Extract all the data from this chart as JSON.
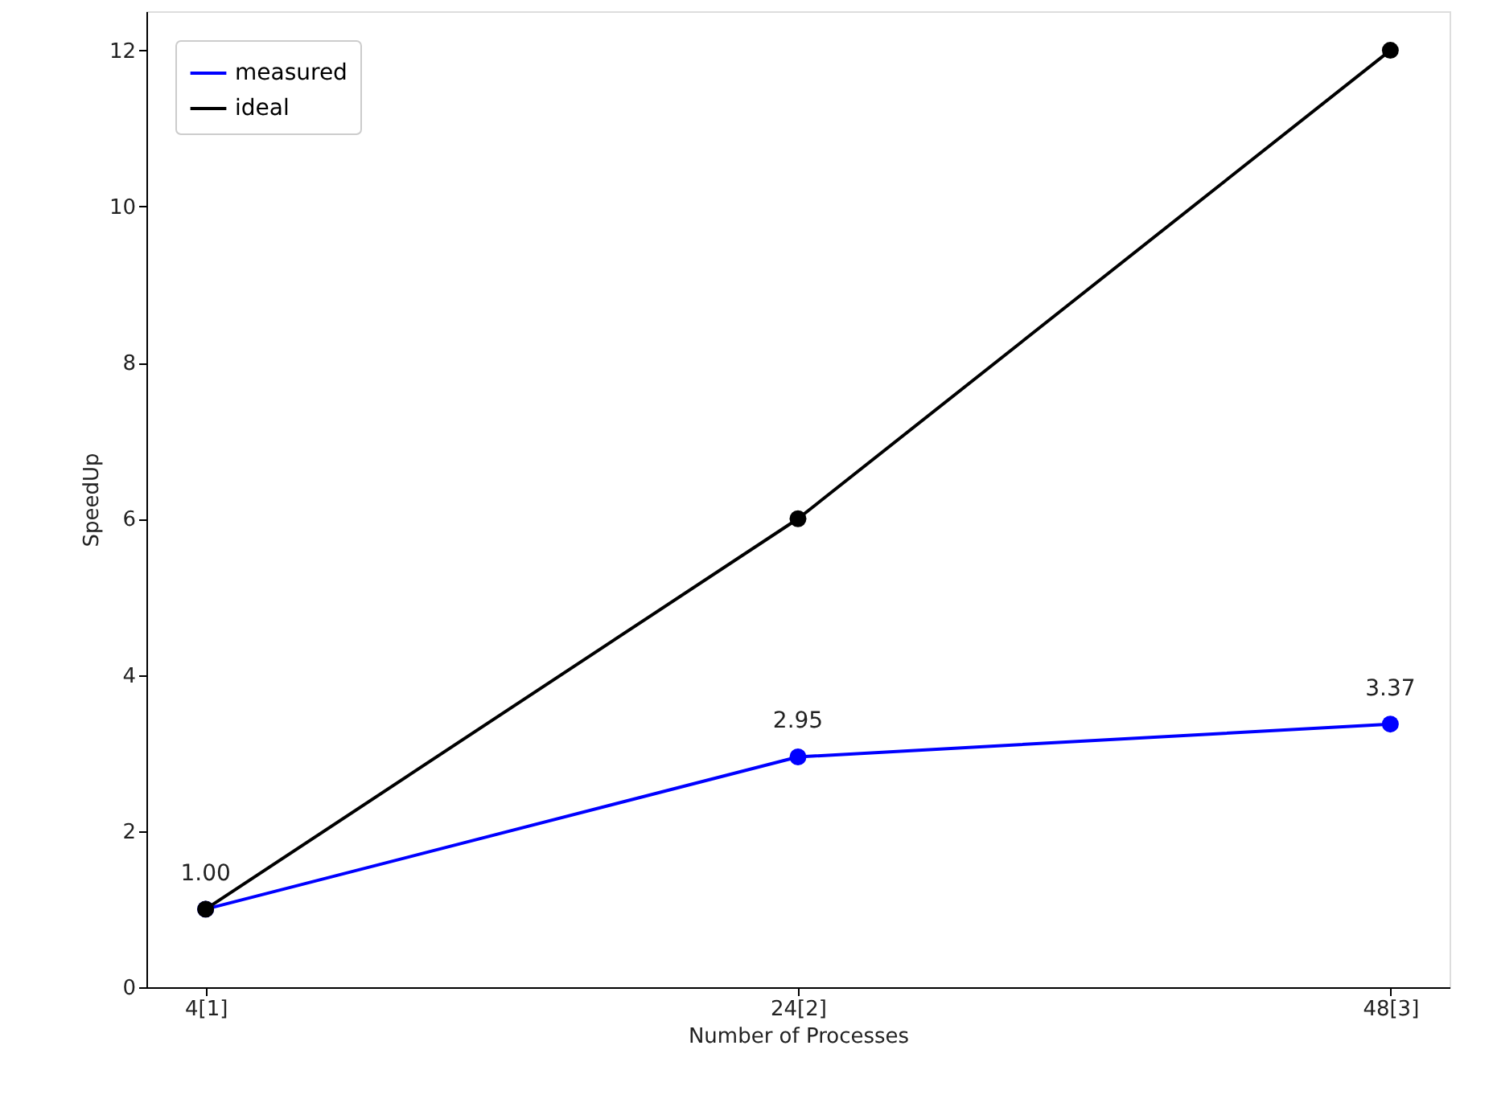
{
  "chart_data": {
    "type": "line",
    "xlabel": "Number of Processes",
    "ylabel": "SpeedUp",
    "categories": [
      "4[1]",
      "24[2]",
      "48[3]"
    ],
    "ylim": [
      0,
      12.5
    ],
    "yticks": [
      0,
      2,
      4,
      6,
      8,
      10,
      12
    ],
    "series": [
      {
        "name": "measured",
        "color": "#0000ff",
        "values": [
          1.0,
          2.95,
          3.37
        ],
        "value_labels": [
          "1.00",
          "2.95",
          "3.37"
        ]
      },
      {
        "name": "ideal",
        "color": "#000000",
        "values": [
          1,
          6,
          12
        ]
      }
    ],
    "legend": "top left",
    "marker": "circle",
    "line_style": "solid",
    "grid": false
  }
}
